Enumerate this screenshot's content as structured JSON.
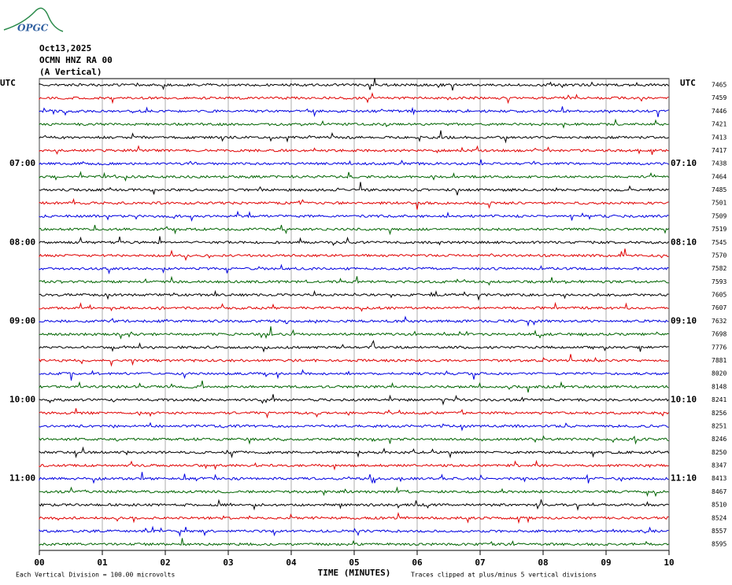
{
  "chart_data": {
    "type": "helicorder",
    "logo": "OPGC",
    "title_lines": [
      "Oct13,2025",
      "OCMN HNZ RA 00",
      "(A Vertical)"
    ],
    "left_axis_label": "UTC",
    "right_axis_label": "UTC",
    "left_labels": [
      null,
      null,
      null,
      null,
      null,
      null,
      "07:00",
      null,
      null,
      null,
      null,
      null,
      "08:00",
      null,
      null,
      null,
      null,
      null,
      "09:00",
      null,
      null,
      null,
      null,
      null,
      "10:00",
      null,
      null,
      null,
      null,
      null,
      "11:00",
      null,
      null,
      null,
      null,
      null
    ],
    "right_labels": [
      null,
      null,
      null,
      null,
      null,
      null,
      "07:10",
      null,
      null,
      null,
      null,
      null,
      "08:10",
      null,
      null,
      null,
      null,
      null,
      "09:10",
      null,
      null,
      null,
      null,
      null,
      "10:10",
      null,
      null,
      null,
      null,
      null,
      "11:10",
      null,
      null,
      null,
      null,
      null
    ],
    "values": [
      7465,
      7459,
      7446,
      7421,
      7413,
      7417,
      7438,
      7464,
      7485,
      7501,
      7509,
      7519,
      7545,
      7570,
      7582,
      7593,
      7605,
      7607,
      7632,
      7698,
      7776,
      7881,
      8020,
      8148,
      8241,
      8256,
      8251,
      8246,
      8250,
      8347,
      8413,
      8467,
      8510,
      8524,
      8557,
      8595
    ],
    "trace_colors": [
      "#000000",
      "#e00000",
      "#0000e0",
      "#006400"
    ],
    "xlabel": "TIME (MINUTES)",
    "xlim": [
      0,
      10
    ],
    "xticks": [
      {
        "value": 0,
        "label": "00"
      },
      {
        "value": 1,
        "label": "01"
      },
      {
        "value": 2,
        "label": "02"
      },
      {
        "value": 3,
        "label": "03"
      },
      {
        "value": 4,
        "label": "04"
      },
      {
        "value": 5,
        "label": "05"
      },
      {
        "value": 6,
        "label": "06"
      },
      {
        "value": 7,
        "label": "07"
      },
      {
        "value": 8,
        "label": "08"
      },
      {
        "value": 9,
        "label": "09"
      },
      {
        "value": 10,
        "label": "10"
      }
    ],
    "footer_left": "Each Vertical Division =  100.00 microvolts",
    "footer_right": "Traces clipped at plus/minus 5 vertical divisions"
  }
}
